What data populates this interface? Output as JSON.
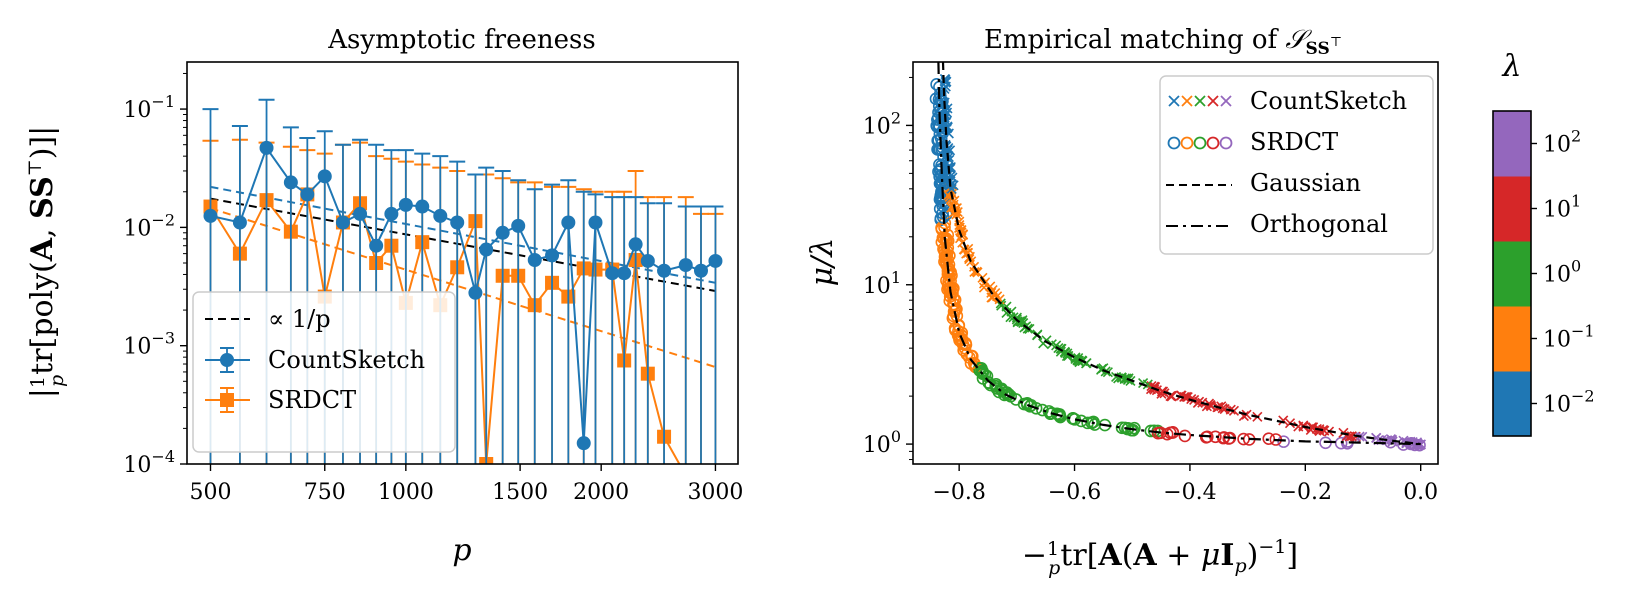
{
  "chart_data": [
    {
      "type": "line",
      "title": "Asymptotic freeness",
      "xlabel": "p",
      "ylabel": "|(1/p) tr[poly(A, SS^T)]|",
      "xscale": "log",
      "yscale": "log",
      "xlim": [
        460,
        3250
      ],
      "ylim": [
        0.0001,
        0.25
      ],
      "xticks": [
        500,
        750,
        1000,
        1500,
        2000,
        3000
      ],
      "xtick_labels": [
        "500",
        "750",
        "1000",
        "1500",
        "2000",
        "3000"
      ],
      "yticks": [
        0.0001,
        0.001,
        0.01,
        0.1
      ],
      "ytick_labels": [
        [
          "10",
          "−4"
        ],
        [
          "10",
          "−3"
        ],
        [
          "10",
          "−2"
        ],
        [
          "10",
          "−1"
        ]
      ],
      "x": [
        500,
        555,
        610,
        665,
        705,
        750,
        800,
        850,
        900,
        950,
        1000,
        1060,
        1130,
        1200,
        1280,
        1330,
        1410,
        1490,
        1580,
        1680,
        1780,
        1880,
        1960,
        2080,
        2170,
        2260,
        2360,
        2500,
        2700,
        2850,
        3000
      ],
      "series": [
        {
          "name": "CountSketch",
          "color": "#1f77b4",
          "marker": "circle",
          "values": [
            0.0125,
            0.011,
            0.047,
            0.024,
            0.019,
            0.027,
            0.011,
            0.013,
            0.007,
            0.013,
            0.0155,
            0.015,
            0.0125,
            0.011,
            0.0028,
            0.0065,
            0.009,
            0.0103,
            0.0053,
            0.0058,
            0.011,
            0.00015,
            0.011,
            0.0041,
            0.0041,
            0.0072,
            0.0052,
            0.0043,
            0.0048,
            0.0043,
            0.0052
          ],
          "err_upper": [
            0.1,
            0.072,
            0.12,
            0.07,
            0.057,
            0.065,
            0.05,
            0.055,
            0.05,
            0.045,
            0.045,
            0.042,
            0.04,
            0.036,
            0.028,
            0.032,
            0.03,
            0.025,
            0.021,
            0.023,
            0.025,
            0.02,
            0.019,
            0.018,
            0.018,
            0.018,
            0.016,
            0.016,
            0.015,
            0.015,
            0.015
          ]
        },
        {
          "name": "SRDCT",
          "color": "#ff7f0e",
          "marker": "square",
          "values": [
            0.015,
            0.006,
            0.017,
            0.0092,
            0.019,
            0.0026,
            0.011,
            0.016,
            0.005,
            0.007,
            0.0023,
            0.0075,
            0.0022,
            0.0046,
            0.0113,
            0.0001,
            0.0039,
            0.0039,
            0.0022,
            0.0034,
            0.0026,
            0.0045,
            0.0044,
            0.0044,
            0.00075,
            0.0053,
            0.00058,
            0.00017,
            8e-05,
            8e-05,
            8e-05
          ],
          "err_upper": [
            0.054,
            0.055,
            0.052,
            0.048,
            0.045,
            0.042,
            0.05,
            0.052,
            0.04,
            0.038,
            0.036,
            0.034,
            0.032,
            0.03,
            0.028,
            0.028,
            0.026,
            0.024,
            0.024,
            0.022,
            0.022,
            0.021,
            0.02,
            0.02,
            0.02,
            0.03,
            0.018,
            0.018,
            0.018,
            0.013,
            0.013
          ]
        }
      ],
      "reference_lines": [
        {
          "name": "∝ 1/p",
          "color": "#000000",
          "style": "dashed",
          "x": [
            500,
            3000
          ],
          "y": [
            0.0175,
            0.0029
          ]
        },
        {
          "name": "CountSketch trend",
          "color": "#1f77b4",
          "style": "dashed",
          "x": [
            500,
            3000
          ],
          "y": [
            0.022,
            0.0034
          ]
        },
        {
          "name": "SRDCT trend",
          "color": "#ff7f0e",
          "style": "dashed",
          "x": [
            500,
            3000
          ],
          "y": [
            0.0145,
            0.00066
          ]
        }
      ],
      "legend": {
        "position": "lower-left",
        "entries": [
          "∝ 1/p",
          "CountSketch",
          "SRDCT"
        ]
      }
    },
    {
      "type": "scatter",
      "title": "Empirical matching of S_{SS^T}",
      "xlabel": "−(1/p) tr[A(A + μI_p)^{−1}]",
      "ylabel": "μ/λ",
      "yscale": "log",
      "xlim": [
        -0.88,
        0.03
      ],
      "ylim": [
        0.75,
        250
      ],
      "xticks": [
        -0.8,
        -0.6,
        -0.4,
        -0.2,
        0.0
      ],
      "xtick_labels": [
        "−0.8",
        "−0.6",
        "−0.4",
        "−0.2",
        "0.0"
      ],
      "yticks": [
        1,
        10,
        100
      ],
      "ytick_labels": [
        [
          "10",
          "0"
        ],
        [
          "10",
          "1"
        ],
        [
          "10",
          "2"
        ]
      ],
      "curves": [
        {
          "name": "Gaussian",
          "style": "dashed",
          "color": "#000000",
          "x": [
            -0.828,
            -0.826,
            -0.822,
            -0.815,
            -0.8,
            -0.78,
            -0.74,
            -0.7,
            -0.65,
            -0.6,
            -0.55,
            -0.5,
            -0.45,
            -0.4,
            -0.35,
            -0.3,
            -0.25,
            -0.2,
            -0.15,
            -0.1,
            -0.05,
            0.0
          ],
          "y": [
            250,
            150,
            80,
            40,
            22,
            14,
            8.5,
            6.0,
            4.4,
            3.5,
            2.9,
            2.5,
            2.15,
            1.9,
            1.7,
            1.53,
            1.4,
            1.28,
            1.19,
            1.11,
            1.05,
            1.0
          ]
        },
        {
          "name": "Orthogonal",
          "style": "dashdot",
          "color": "#000000",
          "x": [
            -0.836,
            -0.834,
            -0.83,
            -0.825,
            -0.815,
            -0.8,
            -0.78,
            -0.75,
            -0.72,
            -0.68,
            -0.64,
            -0.6,
            -0.55,
            -0.5,
            -0.45,
            -0.4,
            -0.35,
            -0.3,
            -0.25,
            -0.2,
            -0.15,
            -0.1,
            -0.05,
            0.0
          ],
          "y": [
            250,
            120,
            50,
            20,
            9,
            5,
            3.4,
            2.5,
            2.05,
            1.75,
            1.56,
            1.43,
            1.32,
            1.24,
            1.18,
            1.14,
            1.11,
            1.08,
            1.06,
            1.04,
            1.03,
            1.02,
            1.01,
            1.0
          ]
        }
      ],
      "scatter_series": [
        {
          "name": "CountSketch",
          "marker": "x",
          "follows": "Gaussian"
        },
        {
          "name": "SRDCT",
          "marker": "circle-open",
          "follows": "Orthogonal"
        }
      ],
      "lambda_values": [
        0.01,
        0.1,
        1,
        10,
        100
      ],
      "lambda_colors": [
        "#1f77b4",
        "#ff7f0e",
        "#2ca02c",
        "#d62728",
        "#9467bd"
      ],
      "legend": {
        "position": "top-right",
        "entries": [
          "CountSketch",
          "SRDCT",
          "Gaussian",
          "Orthogonal"
        ]
      },
      "colorbar": {
        "label": "λ",
        "ticks": [
          [
            "10",
            "−2"
          ],
          [
            "10",
            "−1"
          ],
          [
            "10",
            "0"
          ],
          [
            "10",
            "1"
          ],
          [
            "10",
            "2"
          ]
        ],
        "colors": [
          "#1f77b4",
          "#ff7f0e",
          "#2ca02c",
          "#d62728",
          "#9467bd"
        ]
      }
    }
  ]
}
